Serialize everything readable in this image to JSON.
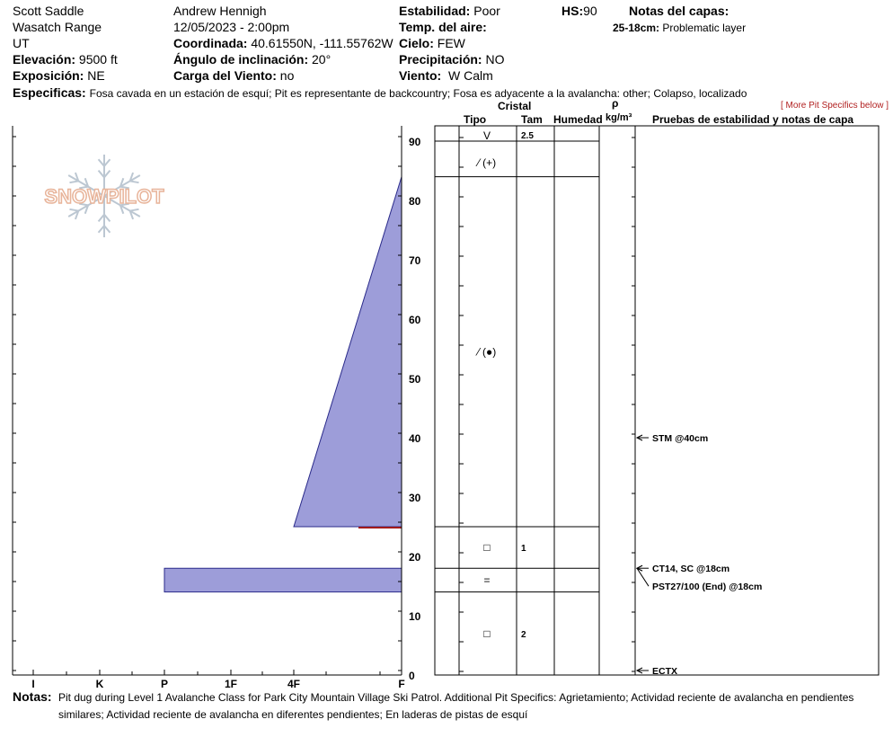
{
  "header": {
    "location": "Scott Saddle",
    "range": "Wasatch Range",
    "state": "UT",
    "elevation_label": "Elevación:",
    "elevation": "9500 ft",
    "aspect_label": "Exposición:",
    "aspect": "NE",
    "observer": "Andrew Hennigh",
    "datetime": "12/05/2023 - 2:00pm",
    "coord_label": "Coordinada:",
    "coord": "40.61550N, -111.55762W",
    "slope_label": "Ángulo de inclinación:",
    "slope": "20°",
    "wind_load_label": "Carga del Viento:",
    "wind_load": "no",
    "stability_label": "Estabilidad:",
    "stability": "Poor",
    "air_temp_label": "Temp. del aire:",
    "sky_label": "Cielo:",
    "sky": "FEW",
    "precip_label": "Precipitación:",
    "precip": "NO",
    "wind_label": "Viento:",
    "wind": "W Calm",
    "hs_label": "HS:",
    "hs": "90",
    "layer_notes_label": "Notas del capas:",
    "layer_note_depth": "25-18cm:",
    "layer_note_text": "Problematic layer",
    "specifics_label": "Especificas:",
    "specifics": "Fosa cavada en un estación de esquí; Pit es representante de backcountry; Fosa es adyacente a la avalancha: other; Colapso, localizado",
    "more_link": "[ More Pit Specifics below ]"
  },
  "logo": {
    "text": "SNOWPILOT"
  },
  "columns": {
    "cristal": "Cristal",
    "tipo": "Tipo",
    "tam": "Tam",
    "humedad": "Humedad",
    "rho": "ρ",
    "density_unit": "kg/m³",
    "tests": "Pruebas de estabilidad y notas de capa"
  },
  "chart_data": {
    "type": "bar",
    "title": "",
    "xlabel": "",
    "ylabel": "",
    "ylim": [
      0,
      90
    ],
    "y_ticks": [
      0,
      10,
      20,
      30,
      40,
      50,
      60,
      70,
      80,
      90
    ],
    "hardness_scale": [
      "I",
      "K",
      "P",
      "1F",
      "4F",
      "F"
    ],
    "hardness_values": {
      "F": 1,
      "4F": 2,
      "1F": 3,
      "P": 4,
      "K": 5,
      "I": 6
    },
    "layers": [
      {
        "top": 90,
        "bottom": 84,
        "hardness_top": "F",
        "hardness_bottom": "F",
        "grain": "V",
        "size": "2.5"
      },
      {
        "top": 84,
        "bottom": 25,
        "hardness_top": "F",
        "hardness_bottom": "4F",
        "grain": "⁄ (●)",
        "size": ""
      },
      {
        "top": 25,
        "bottom": 18,
        "hardness_top": "F",
        "hardness_bottom": "F",
        "grain": "□",
        "size": "1"
      },
      {
        "top": 18,
        "bottom": 14,
        "hardness_top": "P",
        "hardness_bottom": "P",
        "grain": "=",
        "size": ""
      },
      {
        "top": 14,
        "bottom": 0,
        "hardness_top": "F",
        "hardness_bottom": "F",
        "grain": "□",
        "size": "2"
      }
    ],
    "extra_grain": {
      "depth_top": 90,
      "depth_bottom": 84,
      "symbol": "⁄ (+)"
    },
    "problem_layer_depth": 25,
    "tests": [
      {
        "depth": 40,
        "label": "STM @40cm"
      },
      {
        "depth": 18,
        "label": "CT14, SC @18cm"
      },
      {
        "depth": 18,
        "label": "PST27/100 (End) @18cm"
      },
      {
        "depth": 0,
        "label": "ECTX"
      }
    ]
  },
  "notes": {
    "label": "Notas:",
    "line1": "Pit dug during Level 1 Avalanche Class for Park City Mountain Village Ski Patrol. Additional Pit Specifics: Agrietamiento; Actividad reciente de avalancha en pendientes",
    "line2": "similares; Actividad reciente de avalancha en diferentes pendientes; En laderas de pistas de esquí"
  },
  "colors": {
    "layer_fill": "#9d9dd9",
    "layer_stroke": "#2a2a8a",
    "problem_line": "#a11b1b",
    "logo": "#e8b49a"
  }
}
